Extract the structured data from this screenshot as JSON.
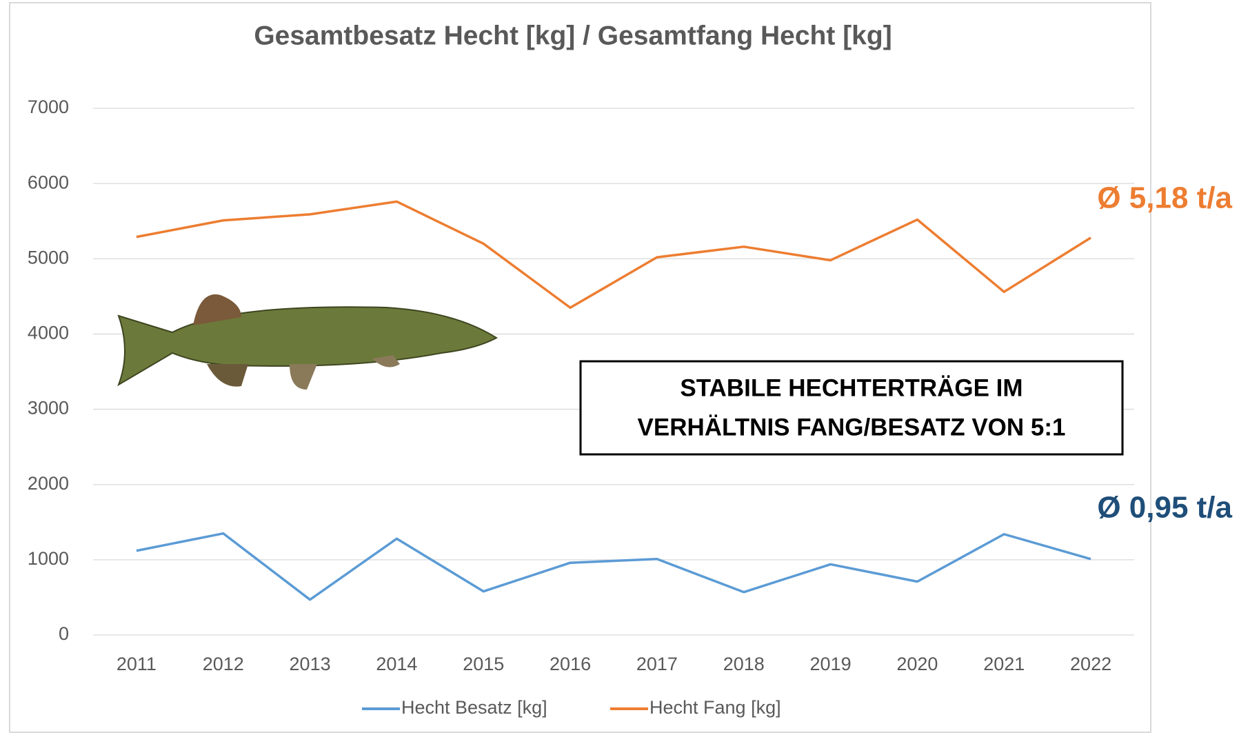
{
  "chart_data": {
    "type": "line",
    "title": "Gesamtbesatz Hecht [kg] / Gesamtfang Hecht [kg]",
    "categories": [
      "2011",
      "2012",
      "2013",
      "2014",
      "2015",
      "2016",
      "2017",
      "2018",
      "2019",
      "2020",
      "2021",
      "2022"
    ],
    "series": [
      {
        "name": "Hecht Besatz [kg]",
        "color": "#5b9bd5",
        "values": [
          1120,
          1350,
          470,
          1280,
          580,
          960,
          1010,
          570,
          940,
          710,
          1340,
          1010
        ]
      },
      {
        "name": "Hecht Fang [kg]",
        "color": "#ed7d31",
        "values": [
          5290,
          5510,
          5590,
          5760,
          5200,
          4350,
          5020,
          5160,
          4980,
          5520,
          4560,
          5280
        ]
      }
    ],
    "ylim": [
      0,
      7000
    ],
    "yticks": [
      0,
      1000,
      2000,
      3000,
      4000,
      5000,
      6000,
      7000
    ],
    "grid": true,
    "legend": "bottom",
    "annotations": [
      {
        "text": "Ø 5,18 t/a",
        "color": "#ed7d31"
      },
      {
        "text": "Ø 0,95 t/a",
        "color": "#1f4e79"
      }
    ],
    "box_text": [
      "STABILE HECHTERTRÄGE IM",
      "VERHÄLTNIS FANG/BESATZ VON 5:1"
    ]
  }
}
